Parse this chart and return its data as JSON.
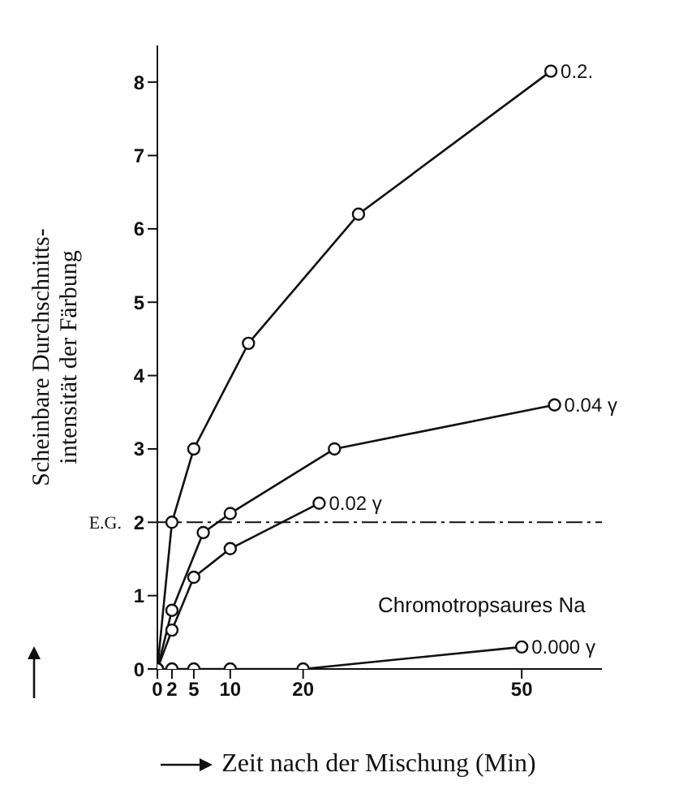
{
  "chart_data": {
    "type": "line",
    "xlabel": "Zeit nach der Mischung (Min)",
    "ylabel": "Scheinbare Durchschnitts-\nintensität der Färbung",
    "xlim": [
      0,
      61
    ],
    "xticks": [
      0,
      2,
      5,
      10,
      20,
      50
    ],
    "ylim": [
      0,
      8.5
    ],
    "yticks": [
      0,
      1,
      2,
      3,
      4,
      5,
      6,
      7,
      8
    ],
    "marker": "circle",
    "line_style": "solid",
    "series": [
      {
        "name": "0.2.",
        "color": "#111111",
        "x": [
          0,
          2,
          5,
          12.5,
          27.6,
          54
        ],
        "values": [
          0,
          2,
          3,
          4.44,
          6.2,
          8.15
        ]
      },
      {
        "name": "0.04 γ",
        "color": "#111111",
        "x": [
          0,
          2,
          6.3,
          10,
          24.3,
          54.5
        ],
        "values": [
          0,
          0.8,
          1.86,
          2.12,
          3,
          3.6
        ]
      },
      {
        "name": "0.02 γ",
        "color": "#111111",
        "x": [
          0,
          2,
          5,
          10,
          22.2
        ],
        "values": [
          0,
          0.53,
          1.25,
          1.64,
          2.26
        ]
      },
      {
        "name": "0.000 γ",
        "color": "#111111",
        "x": [
          0,
          2,
          5,
          10,
          20,
          50
        ],
        "values": [
          0,
          0,
          0,
          0,
          0,
          0.3
        ]
      }
    ],
    "ref_lines": [
      {
        "axis": "y",
        "value": 2,
        "label": "E.G.",
        "line_style": "dashdot",
        "color": "#111111"
      }
    ],
    "annotations": [
      "Chromotropsaures Na"
    ]
  }
}
